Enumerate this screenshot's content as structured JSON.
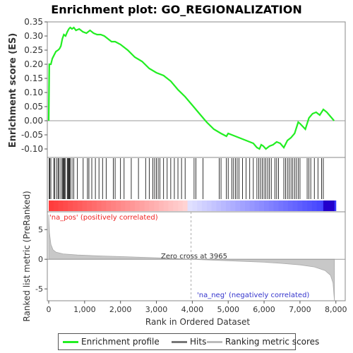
{
  "chart_data": {
    "type": "line",
    "title": "Enrichment plot: GO_REGIONALIZATION",
    "top_panel": {
      "ylabel": "Enrichment score (ES)",
      "ylim": [
        -0.13,
        0.35
      ],
      "yticks": [
        "0.35",
        "0.30",
        "0.25",
        "0.20",
        "0.15",
        "0.10",
        "0.05",
        "0.00",
        "-0.05",
        "-0.10"
      ],
      "ytick_values": [
        0.35,
        0.3,
        0.25,
        0.2,
        0.15,
        0.1,
        0.05,
        0.0,
        -0.05,
        -0.1
      ],
      "series_color": "#22ee22",
      "es_curve": [
        [
          0,
          0
        ],
        [
          15,
          0.2
        ],
        [
          60,
          0.2
        ],
        [
          100,
          0.22
        ],
        [
          140,
          0.23
        ],
        [
          200,
          0.245
        ],
        [
          260,
          0.25
        ],
        [
          300,
          0.255
        ],
        [
          340,
          0.265
        ],
        [
          380,
          0.29
        ],
        [
          420,
          0.305
        ],
        [
          470,
          0.3
        ],
        [
          520,
          0.315
        ],
        [
          560,
          0.325
        ],
        [
          600,
          0.33
        ],
        [
          650,
          0.325
        ],
        [
          700,
          0.33
        ],
        [
          760,
          0.32
        ],
        [
          850,
          0.325
        ],
        [
          950,
          0.315
        ],
        [
          1050,
          0.31
        ],
        [
          1150,
          0.32
        ],
        [
          1250,
          0.31
        ],
        [
          1350,
          0.305
        ],
        [
          1450,
          0.305
        ],
        [
          1550,
          0.3
        ],
        [
          1650,
          0.29
        ],
        [
          1750,
          0.28
        ],
        [
          1850,
          0.28
        ],
        [
          2000,
          0.27
        ],
        [
          2200,
          0.25
        ],
        [
          2400,
          0.225
        ],
        [
          2600,
          0.21
        ],
        [
          2800,
          0.185
        ],
        [
          3000,
          0.17
        ],
        [
          3200,
          0.16
        ],
        [
          3400,
          0.14
        ],
        [
          3600,
          0.11
        ],
        [
          3800,
          0.085
        ],
        [
          4000,
          0.055
        ],
        [
          4200,
          0.025
        ],
        [
          4400,
          -0.005
        ],
        [
          4600,
          -0.03
        ],
        [
          4800,
          -0.045
        ],
        [
          4950,
          -0.055
        ],
        [
          5000,
          -0.045
        ],
        [
          5200,
          -0.055
        ],
        [
          5400,
          -0.065
        ],
        [
          5600,
          -0.075
        ],
        [
          5700,
          -0.08
        ],
        [
          5800,
          -0.095
        ],
        [
          5870,
          -0.1
        ],
        [
          5920,
          -0.085
        ],
        [
          5980,
          -0.09
        ],
        [
          6050,
          -0.1
        ],
        [
          6150,
          -0.09
        ],
        [
          6250,
          -0.085
        ],
        [
          6350,
          -0.075
        ],
        [
          6450,
          -0.08
        ],
        [
          6550,
          -0.095
        ],
        [
          6650,
          -0.07
        ],
        [
          6750,
          -0.06
        ],
        [
          6850,
          -0.045
        ],
        [
          6950,
          -0.005
        ],
        [
          7000,
          -0.01
        ],
        [
          7150,
          -0.03
        ],
        [
          7250,
          0.01
        ],
        [
          7350,
          0.025
        ],
        [
          7450,
          0.03
        ],
        [
          7550,
          0.02
        ],
        [
          7650,
          0.04
        ],
        [
          7750,
          0.03
        ],
        [
          7850,
          0.015
        ],
        [
          7950,
          0.0
        ]
      ],
      "xlim": [
        0,
        8000
      ]
    },
    "hits_panel": {
      "hit_positions": [
        15,
        30,
        60,
        140,
        170,
        220,
        260,
        290,
        340,
        380,
        400,
        420,
        440,
        470,
        520,
        540,
        560,
        580,
        600,
        650,
        700,
        800,
        960,
        1080,
        1120,
        1200,
        1300,
        1400,
        1500,
        1600,
        1800,
        1850,
        2000,
        2100,
        2300,
        2500,
        2700,
        2800,
        2900,
        2950,
        3000,
        3050,
        3100,
        3200,
        3300,
        3400,
        3500,
        3600,
        3700,
        3800,
        4050,
        4100,
        4300,
        4750,
        4800,
        4950,
        5000,
        5100,
        5150,
        5200,
        5250,
        5300,
        5400,
        5500,
        5600,
        5700,
        5800,
        5850,
        5900,
        5950,
        6000,
        6050,
        6100,
        6150,
        6200,
        6300,
        6350,
        6400,
        6550,
        6600,
        6650,
        6700,
        6750,
        6800,
        6850,
        6900,
        6950,
        7000,
        7200,
        7250,
        7300,
        7400,
        7500,
        7600,
        7650
      ]
    },
    "rank_panel": {
      "ylabel": "Ranked list metric (PreRanked)",
      "xlabel": "Rank in Ordered Dataset",
      "ylim": [
        -7,
        8
      ],
      "yticks": [
        "5",
        "0",
        "-5"
      ],
      "ytick_values": [
        5,
        0,
        -5
      ],
      "xticks": [
        "0",
        "1,000",
        "2,000",
        "3,000",
        "4,000",
        "5,000",
        "6,000",
        "7,000",
        "8,000"
      ],
      "xtick_values": [
        0,
        1000,
        2000,
        3000,
        4000,
        5000,
        6000,
        7000,
        8000
      ],
      "zero_cross": 3965,
      "zero_cross_label": "Zero cross at 3965",
      "pos_label": "'na_pos' (positively correlated)",
      "neg_label": "'na_neg' (negatively correlated)",
      "pos_color": "#ff3333",
      "neg_color": "#3333ee",
      "metric_curve": [
        [
          0,
          7.5
        ],
        [
          20,
          4.5
        ],
        [
          60,
          2.5
        ],
        [
          120,
          1.6
        ],
        [
          200,
          1.2
        ],
        [
          400,
          0.9
        ],
        [
          800,
          0.72
        ],
        [
          1500,
          0.55
        ],
        [
          2000,
          0.45
        ],
        [
          3000,
          0.25
        ],
        [
          3965,
          0.0
        ],
        [
          5000,
          -0.25
        ],
        [
          6000,
          -0.5
        ],
        [
          6500,
          -0.7
        ],
        [
          7000,
          -0.95
        ],
        [
          7400,
          -1.3
        ],
        [
          7700,
          -1.9
        ],
        [
          7850,
          -2.7
        ],
        [
          7920,
          -4.0
        ],
        [
          7960,
          -7.0
        ]
      ],
      "xlim": [
        0,
        8000
      ]
    },
    "legend": {
      "items": [
        {
          "label": "Enrichment profile",
          "color": "#22ee22"
        },
        {
          "label": "Hits",
          "color": "#777777"
        },
        {
          "label": "Ranking metric scores",
          "color": "#bbbbbb"
        }
      ]
    }
  }
}
